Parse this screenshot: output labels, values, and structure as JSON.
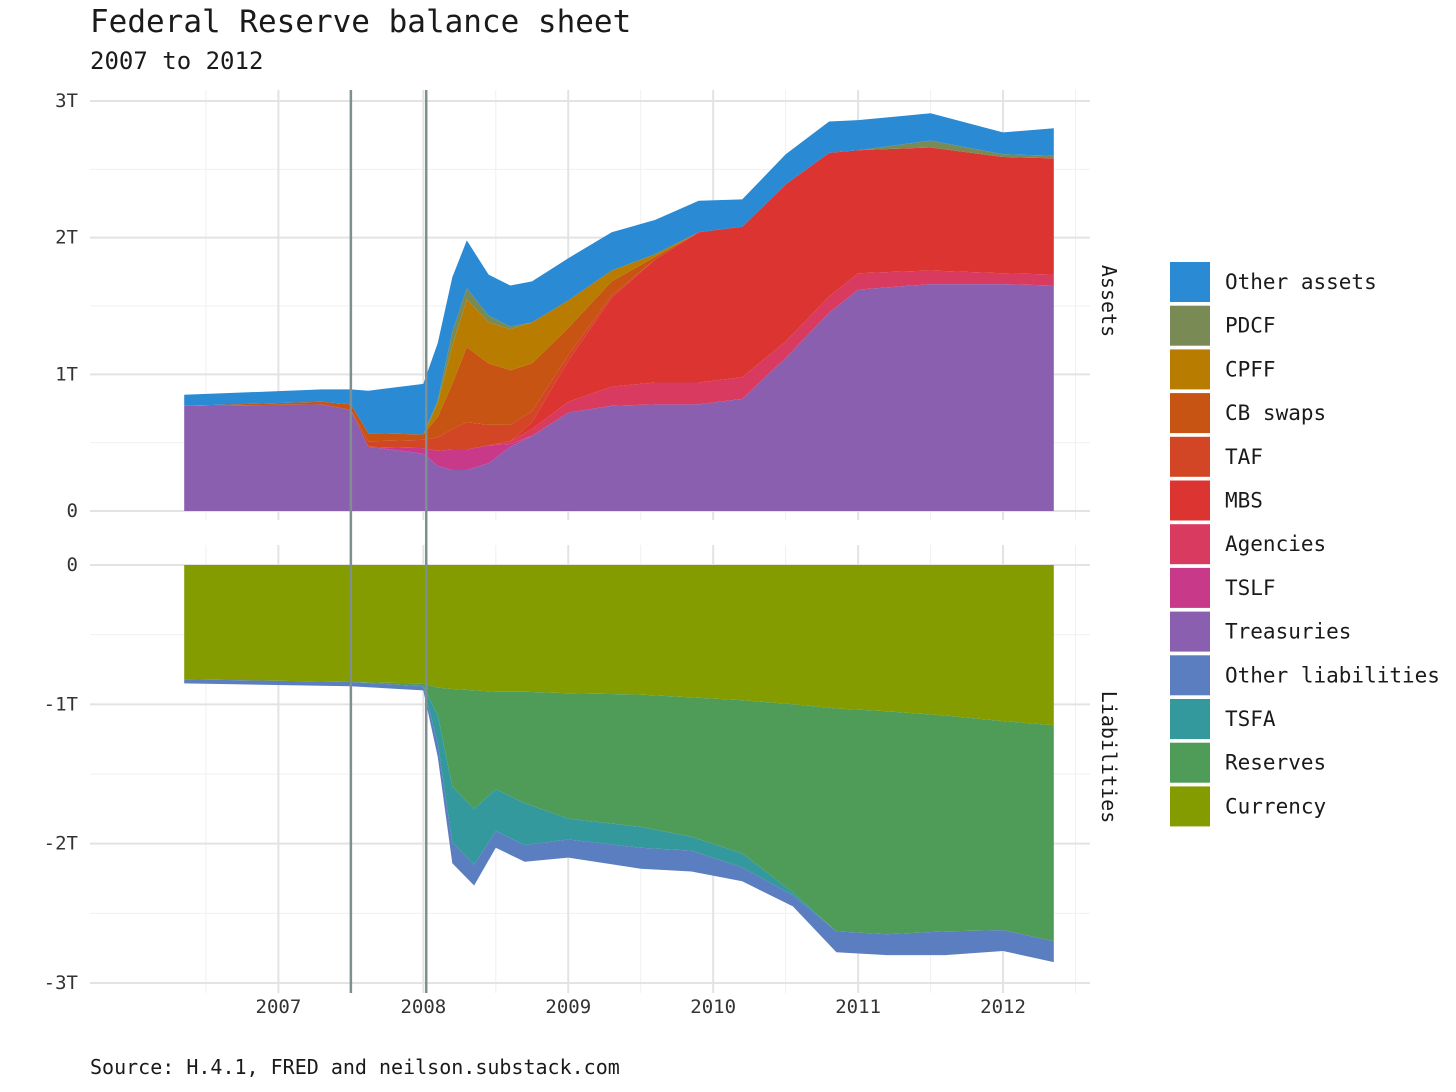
{
  "title": "Federal Reserve balance sheet",
  "subtitle": "2007 to 2012",
  "caption": "Source: H.4.1, FRED and neilson.substack.com",
  "chart_data": {
    "type": "area",
    "stacked": true,
    "x_unit": "year",
    "xlim": [
      2005.7,
      2012.6
    ],
    "x_ticks": [
      2007,
      2008,
      2009,
      2010,
      2011,
      2012
    ],
    "x_tick_labels": [
      "2007",
      "2008",
      "2009",
      "2010",
      "2011",
      "2012"
    ],
    "vertical_lines": [
      2007.5,
      2008.02
    ],
    "vertical_line_color": "#7f8f8f",
    "legend_position": "right",
    "legend": [
      {
        "name": "Other assets",
        "color": "#2a8ad4"
      },
      {
        "name": "PDCF",
        "color": "#7a8a55"
      },
      {
        "name": "CPFF",
        "color": "#b87d00"
      },
      {
        "name": "CB swaps",
        "color": "#c75412"
      },
      {
        "name": "TAF",
        "color": "#d24525"
      },
      {
        "name": "MBS",
        "color": "#dc3430"
      },
      {
        "name": "Agencies",
        "color": "#d93a60"
      },
      {
        "name": "TSLF",
        "color": "#c9398a"
      },
      {
        "name": "Treasuries",
        "color": "#8b5fb0"
      },
      {
        "name": "Other liabilities",
        "color": "#5a7ebf"
      },
      {
        "name": "TSFA",
        "color": "#33999c"
      },
      {
        "name": "Reserves",
        "color": "#4f9c58"
      },
      {
        "name": "Currency",
        "color": "#849c00"
      }
    ],
    "panels": [
      {
        "name": "Assets",
        "ylim": [
          0,
          3
        ],
        "y_ticks": [
          0,
          1,
          2,
          3
        ],
        "y_tick_labels": [
          "0",
          "1T",
          "2T",
          "3T"
        ],
        "x": [
          2006.35,
          2007.3,
          2007.5,
          2007.62,
          2008.0,
          2008.1,
          2008.2,
          2008.3,
          2008.45,
          2008.6,
          2008.75,
          2009.0,
          2009.3,
          2009.6,
          2009.9,
          2010.2,
          2010.5,
          2010.8,
          2011.0,
          2011.5,
          2012.0,
          2012.35
        ],
        "series": [
          {
            "name": "Treasuries",
            "values": [
              0.77,
              0.78,
              0.74,
              0.47,
              0.42,
              0.33,
              0.3,
              0.3,
              0.35,
              0.47,
              0.55,
              0.72,
              0.77,
              0.78,
              0.78,
              0.82,
              1.12,
              1.45,
              1.62,
              1.66,
              1.66,
              1.65
            ]
          },
          {
            "name": "TSLF",
            "values": [
              0,
              0,
              0,
              0,
              0.04,
              0.11,
              0.15,
              0.15,
              0.13,
              0.02,
              0,
              0,
              0,
              0,
              0,
              0,
              0,
              0,
              0,
              0,
              0,
              0
            ]
          },
          {
            "name": "Agencies",
            "values": [
              0,
              0,
              0,
              0,
              0,
              0,
              0,
              0,
              0,
              0.02,
              0.05,
              0.08,
              0.14,
              0.16,
              0.16,
              0.16,
              0.12,
              0.12,
              0.12,
              0.1,
              0.08,
              0.08
            ]
          },
          {
            "name": "MBS",
            "values": [
              0,
              0,
              0,
              0,
              0,
              0,
              0,
              0,
              0,
              0,
              0.05,
              0.3,
              0.65,
              0.9,
              1.1,
              1.1,
              1.15,
              1.05,
              0.9,
              0.9,
              0.85,
              0.85
            ]
          },
          {
            "name": "TAF",
            "values": [
              0,
              0,
              0,
              0.04,
              0.06,
              0.1,
              0.15,
              0.2,
              0.15,
              0.12,
              0.08,
              0.04,
              0.02,
              0,
              0,
              0,
              0,
              0,
              0,
              0,
              0,
              0
            ]
          },
          {
            "name": "CB swaps",
            "values": [
              0,
              0.02,
              0.04,
              0.06,
              0.04,
              0.15,
              0.33,
              0.55,
              0.45,
              0.4,
              0.35,
              0.2,
              0.1,
              0.02,
              0,
              0,
              0,
              0,
              0,
              0,
              0,
              0
            ]
          },
          {
            "name": "CPFF",
            "values": [
              0,
              0,
              0,
              0,
              0,
              0.1,
              0.28,
              0.35,
              0.3,
              0.3,
              0.3,
              0.2,
              0.08,
              0.02,
              0,
              0,
              0,
              0,
              0,
              0,
              0,
              0
            ]
          },
          {
            "name": "PDCF",
            "values": [
              0,
              0,
              0,
              0,
              0,
              0.02,
              0.1,
              0.08,
              0.05,
              0.02,
              0,
              0,
              0,
              0,
              0,
              0,
              0,
              0,
              0,
              0.05,
              0.02,
              0.02
            ]
          },
          {
            "name": "Other assets",
            "values": [
              0.08,
              0.09,
              0.11,
              0.31,
              0.37,
              0.42,
              0.4,
              0.35,
              0.3,
              0.3,
              0.3,
              0.31,
              0.28,
              0.25,
              0.23,
              0.2,
              0.22,
              0.23,
              0.22,
              0.2,
              0.16,
              0.2
            ]
          }
        ]
      },
      {
        "name": "Liabilities",
        "ylim": [
          -3,
          0
        ],
        "y_ticks": [
          -3,
          -2,
          -1,
          0
        ],
        "y_tick_labels": [
          "-3T",
          "-2T",
          "-1T",
          "0"
        ],
        "x": [
          2006.35,
          2007.5,
          2008.0,
          2008.1,
          2008.2,
          2008.35,
          2008.5,
          2008.7,
          2009.0,
          2009.5,
          2009.85,
          2010.2,
          2010.55,
          2010.85,
          2011.2,
          2011.6,
          2012.0,
          2012.35
        ],
        "series": [
          {
            "name": "Currency",
            "values": [
              -0.82,
              -0.84,
              -0.85,
              -0.88,
              -0.89,
              -0.9,
              -0.91,
              -0.91,
              -0.92,
              -0.93,
              -0.95,
              -0.97,
              -1.0,
              -1.03,
              -1.05,
              -1.08,
              -1.12,
              -1.15
            ]
          },
          {
            "name": "Reserves",
            "values": [
              0,
              0,
              -0.02,
              -0.2,
              -0.7,
              -0.85,
              -0.7,
              -0.8,
              -0.9,
              -0.95,
              -1.0,
              -1.1,
              -1.35,
              -1.6,
              -1.6,
              -1.55,
              -1.5,
              -1.55
            ]
          },
          {
            "name": "TSFA",
            "values": [
              0,
              0,
              0,
              -0.2,
              -0.4,
              -0.4,
              -0.3,
              -0.3,
              -0.15,
              -0.15,
              -0.1,
              -0.1,
              -0.02,
              0,
              0,
              0,
              0,
              0
            ]
          },
          {
            "name": "Other liabilities",
            "values": [
              -0.03,
              -0.03,
              -0.03,
              -0.1,
              -0.15,
              -0.15,
              -0.12,
              -0.12,
              -0.13,
              -0.15,
              -0.15,
              -0.1,
              -0.08,
              -0.15,
              -0.15,
              -0.17,
              -0.15,
              -0.15
            ]
          }
        ]
      }
    ]
  }
}
